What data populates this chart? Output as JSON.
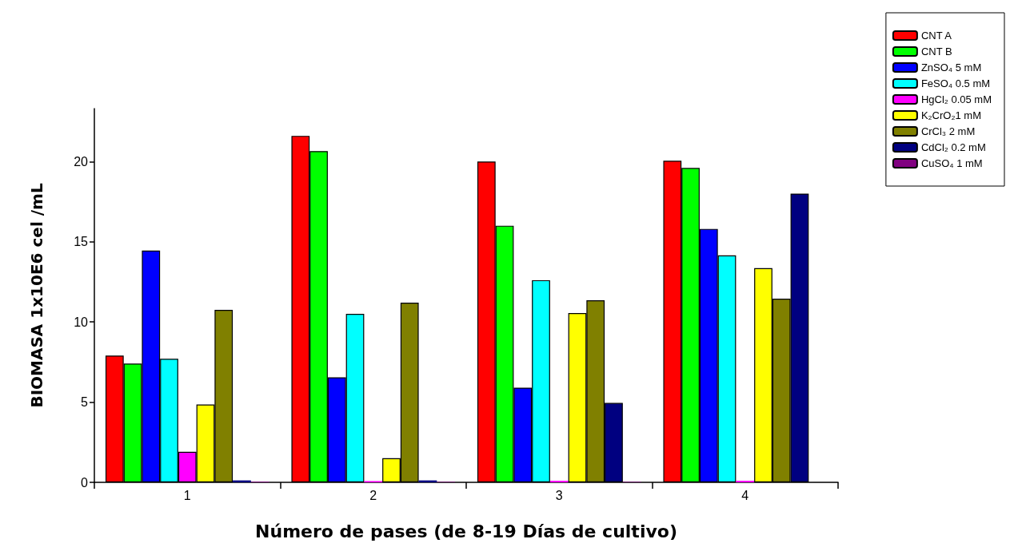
{
  "chart_data": {
    "type": "bar",
    "xlabel": "Número de pases (de 8-19 Días de cultivo)",
    "ylabel": "BIOMASA 1x10E6 cel /mL",
    "categories": [
      "1",
      "2",
      "3",
      "4"
    ],
    "series": [
      {
        "name": "CNT A",
        "color": "#ff0000",
        "values": [
          7.9,
          21.6,
          20.0,
          20.05
        ]
      },
      {
        "name": "CNT B",
        "color": "#00ff00",
        "values": [
          7.4,
          20.65,
          16.0,
          19.6
        ]
      },
      {
        "name": "ZnSO₄ 5 mM",
        "color": "#0000ff",
        "values": [
          14.45,
          6.55,
          5.9,
          15.8
        ]
      },
      {
        "name": "FeSO₄ 0.5 mM",
        "color": "#00ffff",
        "values": [
          7.7,
          10.5,
          12.6,
          14.15
        ]
      },
      {
        "name": "HgCl₂ 0.05 mM",
        "color": "#ff00ff",
        "values": [
          1.9,
          0.08,
          0.1,
          0.1
        ]
      },
      {
        "name": "K₂CrO₂1 mM",
        "color": "#ffff00",
        "values": [
          4.85,
          1.5,
          10.55,
          13.35
        ]
      },
      {
        "name": "CrCl₃ 2 mM",
        "color": "#808000",
        "values": [
          10.75,
          11.2,
          11.35,
          11.45
        ]
      },
      {
        "name": "CdCl₂ 0.2 mM",
        "color": "#000080",
        "values": [
          0.12,
          0.12,
          4.95,
          18.0
        ]
      },
      {
        "name": "CuSO₄ 1 mM",
        "color": "#800080",
        "values": [
          0.04,
          0.03,
          0.03,
          null
        ]
      }
    ],
    "ylim": [
      0,
      23.3
    ],
    "yticks": [
      0,
      5,
      10,
      15,
      20
    ],
    "grid": false,
    "legend": "top right"
  }
}
